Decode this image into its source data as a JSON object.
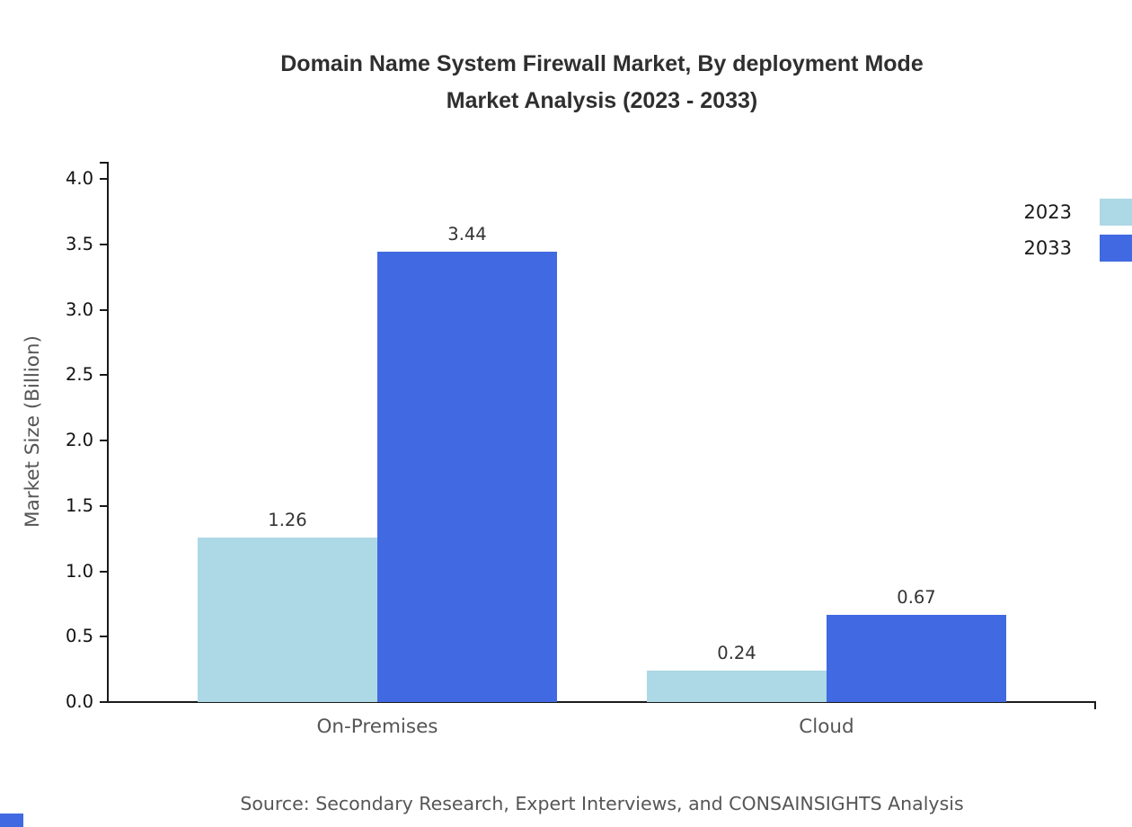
{
  "title": {
    "line1": "Domain Name System Firewall Market, By deployment Mode",
    "line2": "Market Analysis (2023 - 2033)"
  },
  "source": "Source: Secondary Research, Expert Interviews, and CONSAINSIGHTS Analysis",
  "colors": {
    "series_2023": "#ADD8E6",
    "series_2033": "#4169E1",
    "axis": "#1a1a1a",
    "title_text": "#2f2f2f",
    "muted_text": "#555555",
    "brand": "#4169E1"
  },
  "chart_data": {
    "type": "bar",
    "title": "Domain Name System Firewall Market, By deployment Mode Market Analysis (2023 - 2033)",
    "categories": [
      "On-Premises",
      "Cloud"
    ],
    "series": [
      {
        "name": "2023",
        "color": "#ADD8E6",
        "values": [
          1.26,
          0.24
        ]
      },
      {
        "name": "2033",
        "color": "#4169E1",
        "values": [
          3.44,
          0.67
        ]
      }
    ],
    "xlabel": "",
    "ylabel": "Market Size (Billion)",
    "ylim": [
      0,
      4.0
    ],
    "yticks": [
      "0.0",
      "0.5",
      "1.0",
      "1.5",
      "2.0",
      "2.5",
      "3.0",
      "3.5",
      "4.0"
    ],
    "grid": false,
    "legend_position": "top-right",
    "value_label_format": "0.00"
  }
}
